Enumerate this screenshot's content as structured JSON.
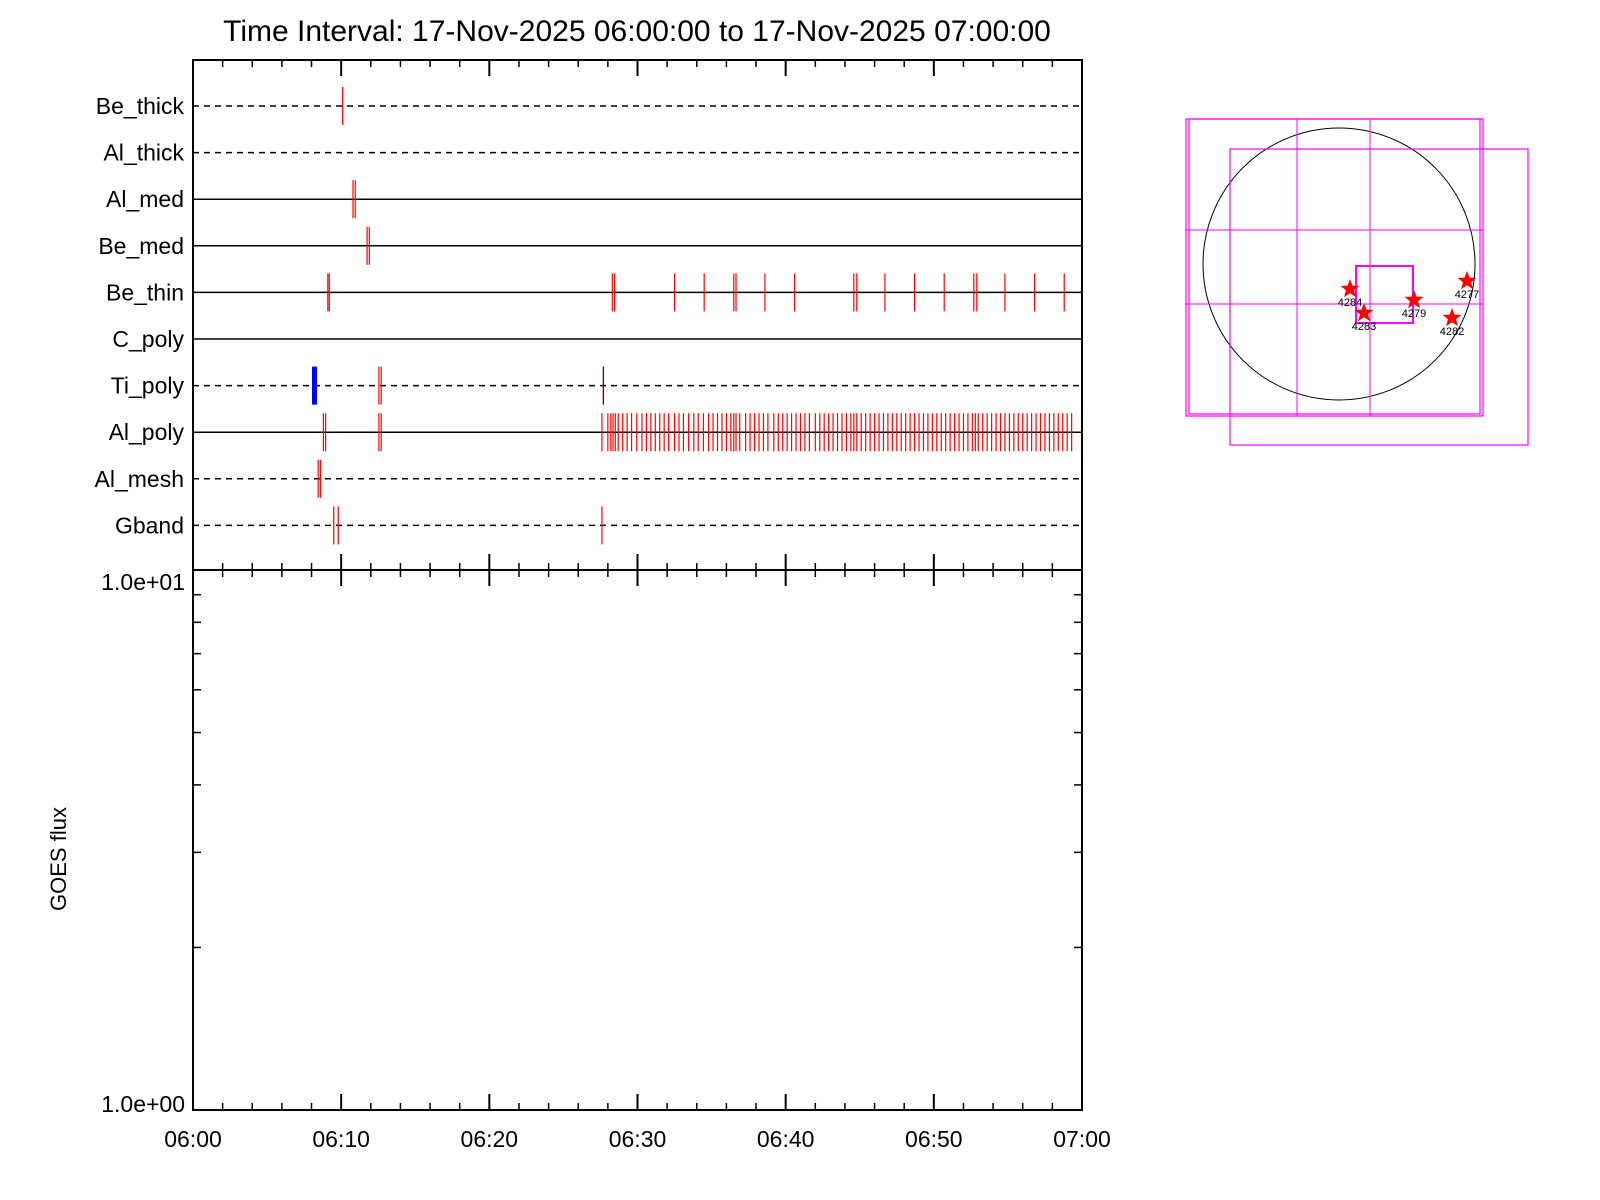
{
  "title": "Time Interval: 17-Nov-2025 06:00:00 to 17-Nov-2025 07:00:00",
  "chart_data": [
    {
      "type": "event-timeline",
      "channels": [
        "Be_thick",
        "Al_thick",
        "Al_med",
        "Be_med",
        "Be_thin",
        "C_poly",
        "Ti_poly",
        "Al_poly",
        "Al_mesh",
        "Gband"
      ],
      "channel_line_style": [
        "dashed",
        "dashed",
        "solid",
        "solid",
        "solid",
        "solid",
        "dashed",
        "solid",
        "dashed",
        "dashed"
      ],
      "xlim_minutes": [
        0,
        60
      ],
      "x_tick_labels": [
        "06:00",
        "06:10",
        "06:20",
        "06:30",
        "06:40",
        "06:50",
        "07:00"
      ],
      "event_color": "#ff0000",
      "highlight_color": "#0000ff",
      "events_minutes": {
        "Be_thick": [
          10.1
        ],
        "Al_thick": [],
        "Al_med": [
          10.8,
          10.95
        ],
        "Be_med": [
          11.75,
          11.9
        ],
        "Be_thin": [
          9.1,
          9.2,
          28.3,
          28.45,
          32.5,
          34.5,
          36.5,
          36.65,
          38.6,
          40.6,
          44.6,
          44.8,
          46.7,
          48.7,
          50.7,
          52.7,
          52.9,
          54.8,
          56.8,
          58.8
        ],
        "C_poly": [],
        "Ti_poly": [
          12.55,
          12.7,
          27.7
        ],
        "Al_poly": [
          8.8,
          8.95,
          12.55,
          12.7,
          27.6,
          28.0,
          28.2,
          28.35,
          28.5,
          28.7,
          29.0,
          29.3,
          29.6,
          29.95,
          30.3,
          30.6,
          30.9,
          31.2,
          31.5,
          31.8,
          32.1,
          32.5,
          32.8,
          33.1,
          33.45,
          33.8,
          34.1,
          34.45,
          34.8,
          35.1,
          35.4,
          35.7,
          36.0,
          36.3,
          36.5,
          36.65,
          36.9,
          37.3,
          37.6,
          37.9,
          38.2,
          38.5,
          38.8,
          39.2,
          39.5,
          39.8,
          40.1,
          40.4,
          40.7,
          41.0,
          41.3,
          41.6,
          42.0,
          42.3,
          42.6,
          42.9,
          43.2,
          43.5,
          43.8,
          44.1,
          44.4,
          44.6,
          44.8,
          45.1,
          45.4,
          45.7,
          46.0,
          46.3,
          46.6,
          46.9,
          47.2,
          47.5,
          47.8,
          48.1,
          48.4,
          48.7,
          49.0,
          49.3,
          49.6,
          49.9,
          50.2,
          50.5,
          50.8,
          51.1,
          51.4,
          51.7,
          52.0,
          52.3,
          52.6,
          52.8,
          53.0,
          53.3,
          53.6,
          53.9,
          54.2,
          54.5,
          54.8,
          55.1,
          55.4,
          55.7,
          56.0,
          56.3,
          56.6,
          56.9,
          57.2,
          57.5,
          57.8,
          58.1,
          58.4,
          58.7,
          59.0,
          59.3
        ],
        "Al_mesh": [
          8.45,
          8.6
        ],
        "Gband": [
          9.5,
          9.8,
          27.6
        ]
      },
      "highlight_events_minutes": {
        "Ti_poly": [
          8.2
        ]
      }
    },
    {
      "type": "line",
      "ylabel": "GOES flux",
      "y_scale": "log",
      "ylim": [
        1.0,
        10.0
      ],
      "y_tick_labels": [
        "1.0e+00",
        "1.0e+01"
      ],
      "xlim_minutes": [
        0,
        60
      ],
      "x_tick_labels": [
        "06:00",
        "06:10",
        "06:20",
        "06:30",
        "06:40",
        "06:50",
        "07:00"
      ],
      "series": []
    },
    {
      "type": "solar-disk-map",
      "disk_color": "#000000",
      "box_color": "#ff00ff",
      "marker_color": "#ff0000",
      "active_regions": [
        "4284",
        "4283",
        "4279",
        "4277",
        "4282"
      ]
    }
  ]
}
